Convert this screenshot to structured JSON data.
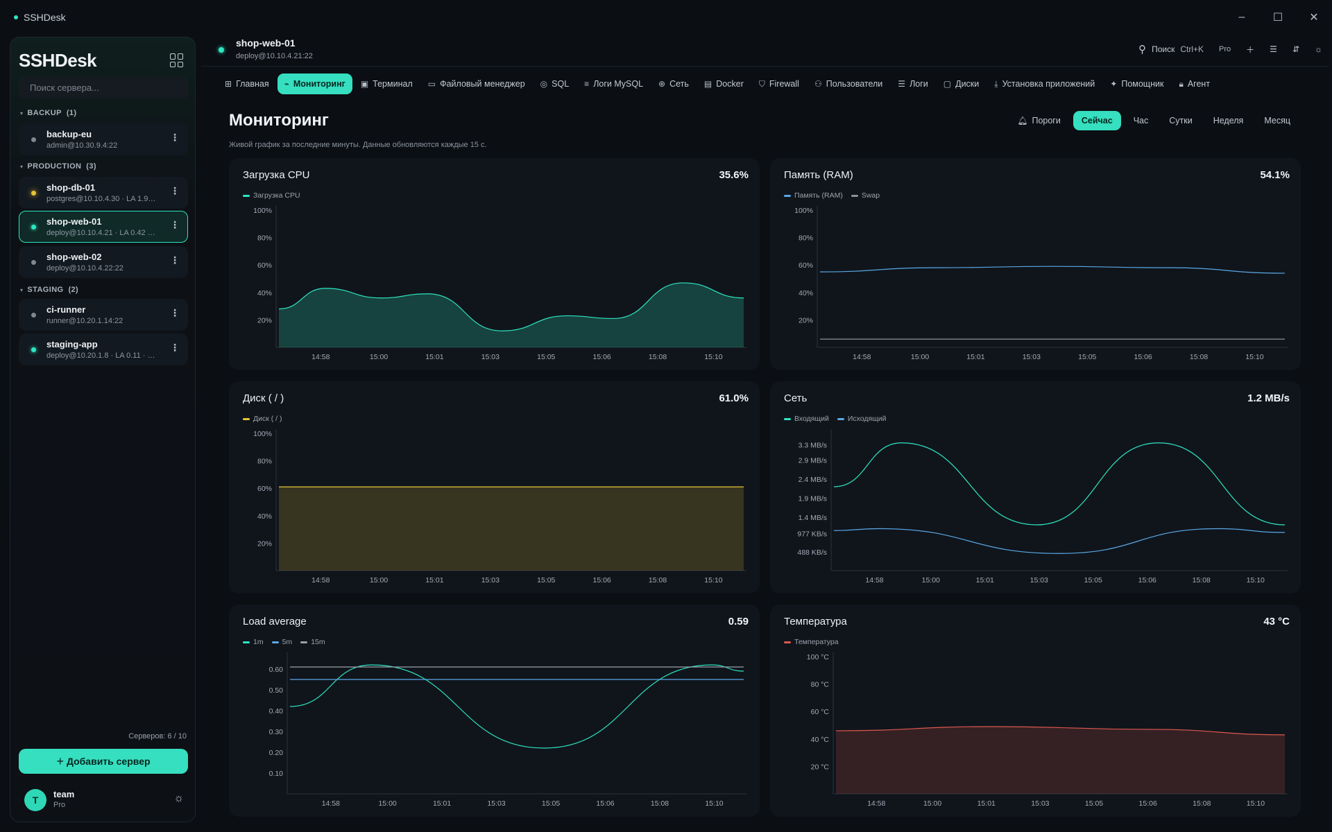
{
  "window": {
    "title": "SSHDesk",
    "controls": [
      "–",
      "☐",
      "✕"
    ]
  },
  "sidebar": {
    "brand": "SSHDesk",
    "search_placeholder": "Поиск сервера...",
    "groups": [
      {
        "label": "BACKUP",
        "count": "(1)",
        "servers": [
          {
            "name": "backup-eu",
            "sub": "admin@10.30.9.4:22",
            "status": "gray"
          }
        ]
      },
      {
        "label": "PRODUCTION",
        "count": "(3)",
        "servers": [
          {
            "name": "shop-db-01",
            "sub": "postgres@10.10.4.30  ·  LA 1.9…",
            "status": "warn"
          },
          {
            "name": "shop-web-01",
            "sub": "deploy@10.10.4.21  ·  LA 0.42 ·…",
            "status": "ok",
            "active": true
          },
          {
            "name": "shop-web-02",
            "sub": "deploy@10.10.4.22:22",
            "status": "gray"
          }
        ]
      },
      {
        "label": "STAGING",
        "count": "(2)",
        "servers": [
          {
            "name": "ci-runner",
            "sub": "runner@10.20.1.14:22",
            "status": "gray"
          },
          {
            "name": "staging-app",
            "sub": "deploy@10.20.1.8  ·  LA 0.11 · …",
            "status": "ok"
          }
        ]
      }
    ],
    "server_count": "Серверов: 6 / 10",
    "add_button": "Добавить сервер",
    "user": {
      "initial": "T",
      "name": "team",
      "plan": "Pro"
    }
  },
  "header": {
    "host": "shop-web-01",
    "address": "deploy@10.10.4.21:22",
    "search_label": "Поиск",
    "search_shortcut": "Ctrl+K",
    "plan": "Pro"
  },
  "tabs": [
    {
      "label": "Главная",
      "icon": "grid-icon",
      "glyph": "⊞"
    },
    {
      "label": "Мониторинг",
      "icon": "chart-icon",
      "glyph": "⌁",
      "active": true
    },
    {
      "label": "Терминал",
      "icon": "terminal-icon",
      "glyph": "▣"
    },
    {
      "label": "Файловый менеджер",
      "icon": "folder-icon",
      "glyph": "▭"
    },
    {
      "label": "SQL",
      "icon": "database-icon",
      "glyph": "◎"
    },
    {
      "label": "Логи MySQL",
      "icon": "filter-icon",
      "glyph": "≡"
    },
    {
      "label": "Сеть",
      "icon": "globe-icon",
      "glyph": "⊕"
    },
    {
      "label": "Docker",
      "icon": "box-icon",
      "glyph": "▤"
    },
    {
      "label": "Firewall",
      "icon": "shield-icon",
      "glyph": "⛉"
    },
    {
      "label": "Пользователи",
      "icon": "users-icon",
      "glyph": "⚇"
    },
    {
      "label": "Логи",
      "icon": "list-icon",
      "glyph": "☰"
    },
    {
      "label": "Диски",
      "icon": "disk-icon",
      "glyph": "▢"
    },
    {
      "label": "Установка приложений",
      "icon": "download-icon",
      "glyph": "⤓"
    },
    {
      "label": "Помощник",
      "icon": "sparkle-icon",
      "glyph": "✦"
    },
    {
      "label": "Агент",
      "icon": "lock-icon",
      "glyph": "🔒︎"
    }
  ],
  "page": {
    "title": "Мониторинг",
    "subtitle": "Живой график за последние минуты. Данные обновляются каждые 15 с.",
    "thresholds": "Пороги",
    "ranges": [
      {
        "label": "Сейчас",
        "active": true
      },
      {
        "label": "Час"
      },
      {
        "label": "Сутки"
      },
      {
        "label": "Неделя"
      },
      {
        "label": "Месяц"
      }
    ]
  },
  "colors": {
    "accent": "#35dfbf",
    "cpu": "#2ee6c0",
    "ram": "#5aa9e6",
    "swap": "#8a929c",
    "disk": "#e7c436",
    "net_in": "#2ee6c0",
    "net_out": "#5aa9e6",
    "temp": "#e0584f"
  },
  "chart_data": [
    {
      "id": "cpu",
      "type": "area",
      "title": "Загрузка CPU",
      "current": "35.6%",
      "x": [
        "14:58",
        "15:00",
        "15:01",
        "15:03",
        "15:05",
        "15:06",
        "15:08",
        "15:10"
      ],
      "y_ticks": [
        "100%",
        "80%",
        "60%",
        "40%",
        "20%"
      ],
      "ylim": [
        0,
        100
      ],
      "series": [
        {
          "name": "Загрузка CPU",
          "color": "#2ee6c0",
          "points": [
            [
              0,
              28
            ],
            [
              0.1,
              43
            ],
            [
              0.22,
              36
            ],
            [
              0.32,
              39
            ],
            [
              0.48,
              12
            ],
            [
              0.62,
              23
            ],
            [
              0.72,
              21
            ],
            [
              0.87,
              47
            ],
            [
              1,
              36
            ]
          ]
        }
      ]
    },
    {
      "id": "ram",
      "type": "line",
      "title": "Память (RAM)",
      "current": "54.1%",
      "x": [
        "14:58",
        "15:00",
        "15:01",
        "15:03",
        "15:05",
        "15:06",
        "15:08",
        "15:10"
      ],
      "y_ticks": [
        "100%",
        "80%",
        "60%",
        "40%",
        "20%"
      ],
      "ylim": [
        0,
        100
      ],
      "series": [
        {
          "name": "Память (RAM)",
          "color": "#5aa9e6",
          "points": [
            [
              0,
              55
            ],
            [
              0.25,
              58
            ],
            [
              0.5,
              59
            ],
            [
              0.75,
              58
            ],
            [
              1,
              54
            ]
          ]
        },
        {
          "name": "Swap",
          "color": "#8a929c",
          "points": [
            [
              0,
              6
            ],
            [
              1,
              6
            ]
          ]
        }
      ]
    },
    {
      "id": "disk",
      "type": "area",
      "title": "Диск ( / )",
      "current": "61.0%",
      "x": [
        "14:58",
        "15:00",
        "15:01",
        "15:03",
        "15:05",
        "15:06",
        "15:08",
        "15:10"
      ],
      "y_ticks": [
        "100%",
        "80%",
        "60%",
        "40%",
        "20%"
      ],
      "ylim": [
        0,
        100
      ],
      "series": [
        {
          "name": "Диск ( / )",
          "color": "#e7c436",
          "points": [
            [
              0,
              61
            ],
            [
              1,
              61
            ]
          ]
        }
      ]
    },
    {
      "id": "net",
      "type": "line",
      "title": "Сеть",
      "current": "1.2 MB/s",
      "x": [
        "14:58",
        "15:00",
        "15:01",
        "15:03",
        "15:05",
        "15:06",
        "15:08",
        "15:10"
      ],
      "y_ticks": [
        "3.3 MB/s",
        "2.9 MB/s",
        "2.4 MB/s",
        "1.9 MB/s",
        "1.4 MB/s",
        "977 KB/s",
        "488 KB/s"
      ],
      "ylim": [
        0,
        3.6
      ],
      "series": [
        {
          "name": "Входящий",
          "color": "#2ee6c0",
          "points": [
            [
              0,
              2.2
            ],
            [
              0.15,
              3.35
            ],
            [
              0.45,
              1.2
            ],
            [
              0.72,
              3.35
            ],
            [
              1,
              1.2
            ]
          ]
        },
        {
          "name": "Исходящий",
          "color": "#5aa9e6",
          "points": [
            [
              0,
              1.05
            ],
            [
              0.1,
              1.1
            ],
            [
              0.5,
              0.45
            ],
            [
              0.85,
              1.1
            ],
            [
              1,
              1.0
            ]
          ]
        }
      ]
    },
    {
      "id": "load",
      "type": "line",
      "title": "Load average",
      "current": "0.59",
      "x": [
        "14:58",
        "15:00",
        "15:01",
        "15:03",
        "15:05",
        "15:06",
        "15:08",
        "15:10"
      ],
      "y_ticks": [
        "0.60",
        "0.50",
        "0.40",
        "0.30",
        "0.20",
        "0.10"
      ],
      "ylim": [
        0,
        0.66
      ],
      "series": [
        {
          "name": "1m",
          "color": "#2ee6c0",
          "points": [
            [
              0,
              0.42
            ],
            [
              0.18,
              0.62
            ],
            [
              0.56,
              0.22
            ],
            [
              0.93,
              0.62
            ],
            [
              1,
              0.59
            ]
          ]
        },
        {
          "name": "5m",
          "color": "#5aa9e6",
          "points": [
            [
              0,
              0.55
            ],
            [
              1,
              0.55
            ]
          ]
        },
        {
          "name": "15m",
          "color": "#9aa2ac",
          "points": [
            [
              0,
              0.61
            ],
            [
              1,
              0.61
            ]
          ]
        }
      ]
    },
    {
      "id": "temp",
      "type": "area",
      "title": "Температура",
      "current": "43 °C",
      "x": [
        "14:58",
        "15:00",
        "15:01",
        "15:03",
        "15:05",
        "15:06",
        "15:08",
        "15:10"
      ],
      "y_ticks": [
        "100 °C",
        "80 °C",
        "60 °C",
        "40 °C",
        "20 °C"
      ],
      "ylim": [
        0,
        100
      ],
      "series": [
        {
          "name": "Температура",
          "color": "#e0584f",
          "points": [
            [
              0,
              46
            ],
            [
              0.35,
              49
            ],
            [
              0.7,
              47
            ],
            [
              1,
              43
            ]
          ]
        }
      ]
    }
  ]
}
